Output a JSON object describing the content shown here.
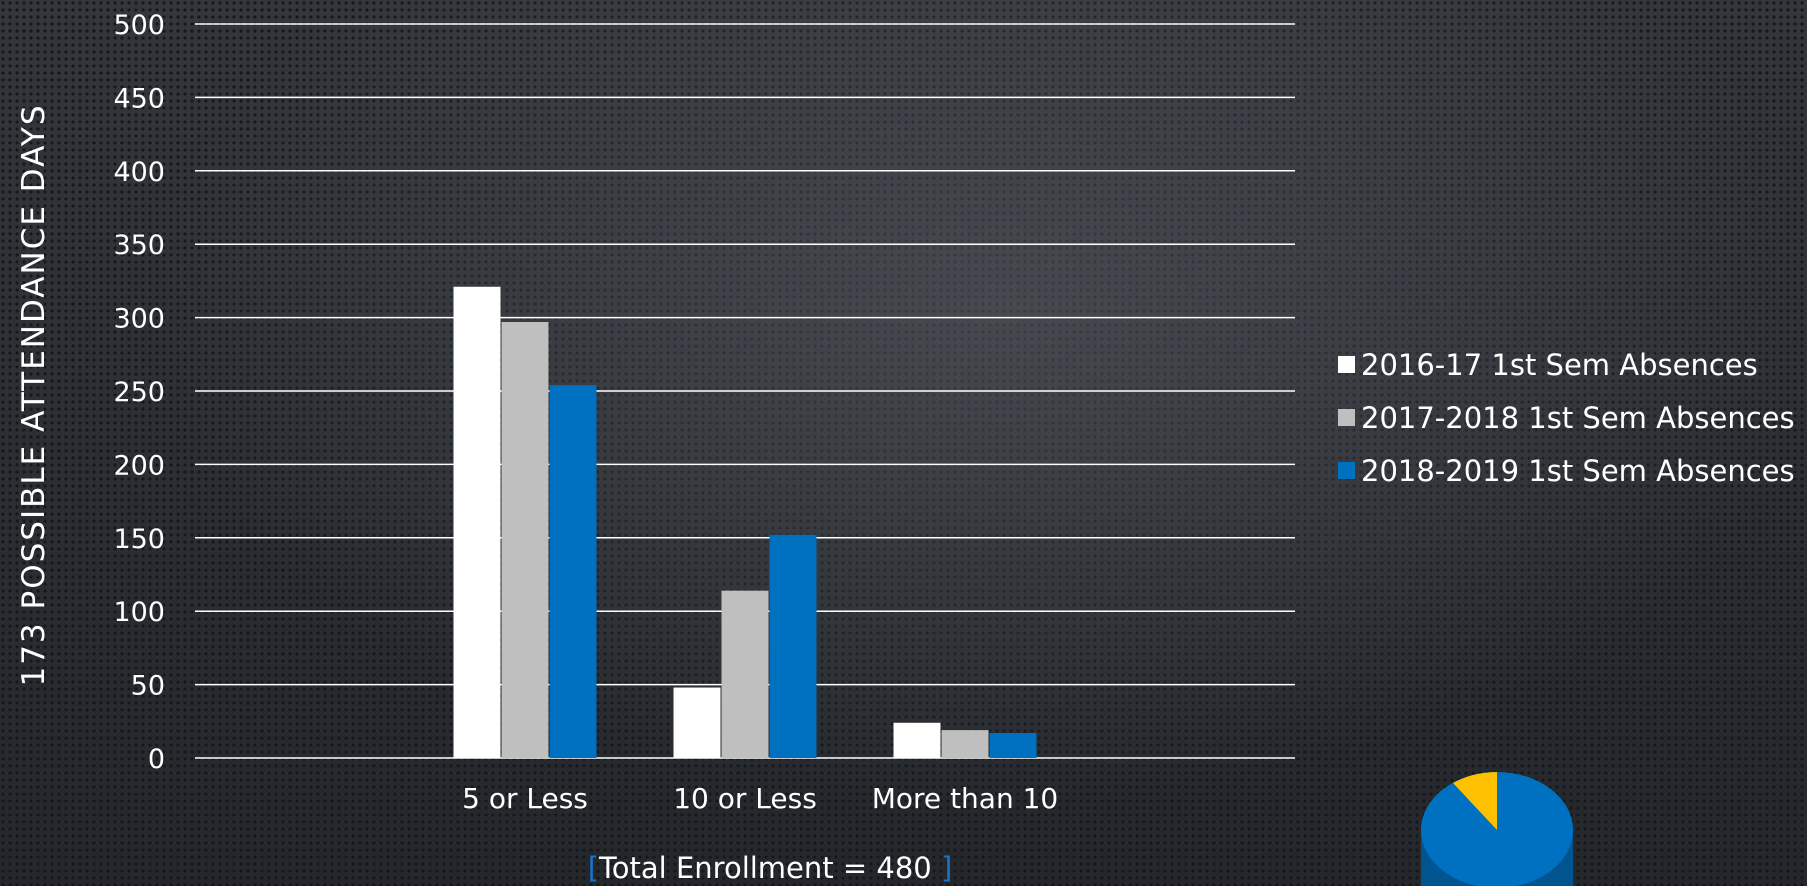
{
  "chart_data": {
    "type": "bar",
    "categories": [
      "5 or Less",
      "10 or Less",
      "More than 10"
    ],
    "series": [
      {
        "name": "2016-17 1st Sem Absences",
        "values": [
          321,
          48,
          24
        ],
        "color": "#ffffff"
      },
      {
        "name": "2017-2018 1st Sem Absences",
        "values": [
          297,
          114,
          19
        ],
        "color": "#bfbfbf"
      },
      {
        "name": "2018-2019 1st Sem Absences",
        "values": [
          254,
          152,
          17
        ],
        "color": "#0070c0"
      }
    ],
    "ylabel": "173 POSSIBLE ATTENDANCE DAYS",
    "ylim": [
      0,
      500
    ],
    "yticks": [
      0,
      50,
      100,
      150,
      200,
      250,
      300,
      350,
      400,
      450,
      500
    ],
    "grid": true,
    "legend_position": "right"
  },
  "footnote": {
    "open_bracket": "[",
    "text": "Total Enrollment = 480 ",
    "close_bracket": "]"
  },
  "pie": {
    "colors": [
      "#0070c0",
      "#ffc000"
    ],
    "partially_visible": true
  }
}
